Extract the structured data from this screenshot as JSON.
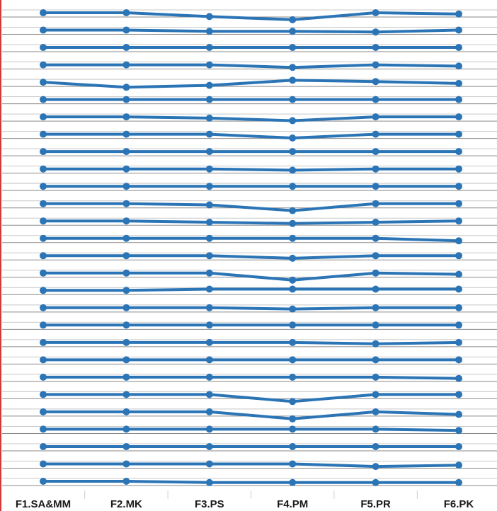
{
  "chart_data": {
    "type": "line",
    "title": "",
    "xlabel": "",
    "ylabel": "",
    "categories": [
      "F1.SA&MM",
      "F2.MK",
      "F3.PS",
      "F4.PM",
      "F5.PR",
      "F6.PK"
    ],
    "note": "small-multiple profile lines; each series is drawn in its own horizontal band, values are vertical offsets within the band (0 = band baseline, positive = upward)",
    "band_ylim": [
      -1.5,
      1.5
    ],
    "grid": true,
    "legend": "none",
    "line_color": "#2b75b6",
    "series": [
      {
        "values": [
          0.0,
          0.0,
          -0.6,
          -1.1,
          0.0,
          -0.2
        ]
      },
      {
        "values": [
          0.0,
          0.0,
          -0.2,
          -0.2,
          -0.3,
          0.0
        ]
      },
      {
        "values": [
          0.0,
          0.0,
          0.0,
          0.0,
          0.0,
          0.0
        ]
      },
      {
        "values": [
          0.0,
          0.0,
          0.0,
          -0.4,
          0.0,
          -0.2
        ]
      },
      {
        "values": [
          0.0,
          -0.8,
          -0.5,
          0.3,
          0.1,
          -0.2
        ]
      },
      {
        "values": [
          0.0,
          0.0,
          0.0,
          0.0,
          0.0,
          0.0
        ]
      },
      {
        "values": [
          0.0,
          0.0,
          -0.2,
          -0.6,
          0.0,
          0.0
        ]
      },
      {
        "values": [
          0.0,
          0.0,
          0.0,
          -0.6,
          0.0,
          0.0
        ]
      },
      {
        "values": [
          0.0,
          0.0,
          0.0,
          0.0,
          0.0,
          0.0
        ]
      },
      {
        "values": [
          0.0,
          0.0,
          0.0,
          -0.2,
          0.0,
          0.0
        ]
      },
      {
        "values": [
          0.0,
          0.0,
          0.0,
          0.0,
          0.0,
          0.0
        ]
      },
      {
        "values": [
          0.0,
          0.0,
          -0.2,
          -1.1,
          0.0,
          0.0
        ]
      },
      {
        "values": [
          0.0,
          0.0,
          -0.2,
          -0.4,
          -0.2,
          0.0
        ]
      },
      {
        "values": [
          0.0,
          0.0,
          0.0,
          0.0,
          0.0,
          -0.4
        ]
      },
      {
        "values": [
          0.0,
          0.0,
          0.0,
          -0.4,
          0.0,
          0.0
        ]
      },
      {
        "values": [
          0.0,
          0.0,
          0.0,
          -1.1,
          0.0,
          -0.2
        ]
      },
      {
        "values": [
          0.0,
          0.0,
          0.2,
          0.2,
          0.2,
          0.2
        ]
      },
      {
        "values": [
          0.0,
          0.0,
          0.0,
          -0.2,
          0.0,
          0.0
        ]
      },
      {
        "values": [
          0.0,
          0.0,
          0.0,
          0.0,
          0.0,
          0.0
        ]
      },
      {
        "values": [
          0.0,
          0.0,
          0.0,
          0.0,
          -0.2,
          0.0
        ]
      },
      {
        "values": [
          0.0,
          0.0,
          0.0,
          0.0,
          0.0,
          0.0
        ]
      },
      {
        "values": [
          0.0,
          0.0,
          0.0,
          0.0,
          0.0,
          -0.2
        ]
      },
      {
        "values": [
          0.0,
          0.0,
          0.0,
          -1.1,
          0.0,
          0.0
        ]
      },
      {
        "values": [
          0.0,
          0.0,
          0.0,
          -1.1,
          0.0,
          -0.4
        ]
      },
      {
        "values": [
          0.0,
          0.0,
          0.0,
          0.0,
          0.0,
          -0.2
        ]
      },
      {
        "values": [
          0.0,
          0.0,
          0.0,
          0.0,
          0.0,
          0.0
        ]
      },
      {
        "values": [
          0.0,
          0.0,
          0.0,
          0.0,
          -0.4,
          -0.2
        ]
      },
      {
        "values": [
          0.0,
          0.0,
          -0.2,
          -0.2,
          -0.2,
          -0.2
        ]
      }
    ]
  }
}
